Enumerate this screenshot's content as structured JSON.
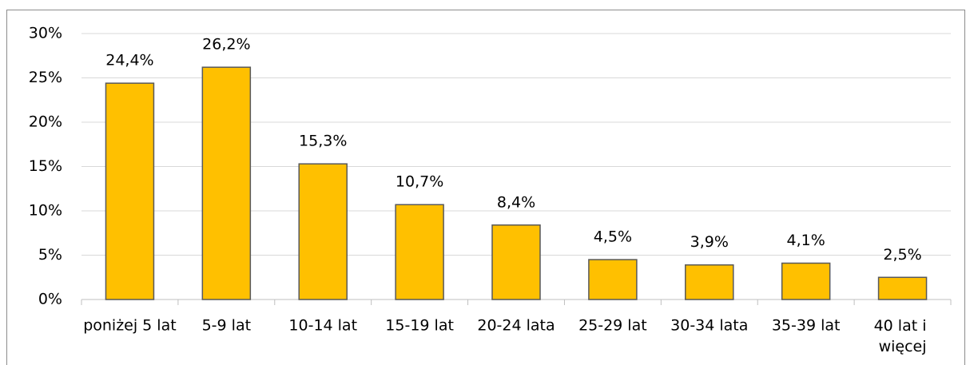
{
  "chart_data": {
    "type": "bar",
    "categories": [
      "poniżej 5 lat",
      "5-9 lat",
      "10-14 lat",
      "15-19 lat",
      "20-24 lata",
      "25-29 lat",
      "30-34 lata",
      "35-39 lat",
      "40 lat i więcej"
    ],
    "values": [
      24.4,
      26.2,
      15.3,
      10.7,
      8.4,
      4.5,
      3.9,
      4.1,
      2.5
    ],
    "value_labels": [
      "24,4%",
      "26,2%",
      "15,3%",
      "10,7%",
      "8,4%",
      "4,5%",
      "3,9%",
      "4,1%",
      "2,5%"
    ],
    "color": "#ffc000",
    "ylim": [
      0,
      30
    ],
    "yticks": [
      {
        "value": 0,
        "label": "0%"
      },
      {
        "value": 5,
        "label": "5%"
      },
      {
        "value": 10,
        "label": "10%"
      },
      {
        "value": 15,
        "label": "15%"
      },
      {
        "value": 20,
        "label": "20%"
      },
      {
        "value": 25,
        "label": "25%"
      },
      {
        "value": 30,
        "label": "30%"
      }
    ],
    "grid": true
  }
}
